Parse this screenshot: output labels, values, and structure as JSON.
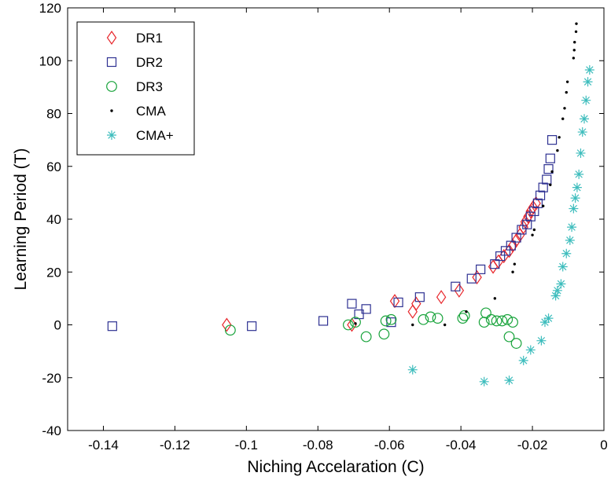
{
  "chart_data": {
    "type": "scatter",
    "title": "",
    "xlabel": "Niching Accelaration (C)",
    "ylabel": "Learning Period (T)",
    "xlim": [
      -0.15,
      0
    ],
    "ylim": [
      -40,
      120
    ],
    "xticks": [
      -0.14,
      -0.12,
      -0.1,
      -0.08,
      -0.06,
      -0.04,
      -0.02,
      0
    ],
    "xtick_labels": [
      "-0.14",
      "-0.12",
      "-0.1",
      "-0.08",
      "-0.06",
      "-0.04",
      "-0.02",
      "0"
    ],
    "yticks": [
      -40,
      -20,
      0,
      20,
      40,
      60,
      80,
      100,
      120
    ],
    "ytick_labels": [
      "-40",
      "-20",
      "0",
      "20",
      "40",
      "60",
      "80",
      "100",
      "120"
    ],
    "grid": false,
    "legend_position": "top-left",
    "series": [
      {
        "name": "DR1",
        "marker": "diamond",
        "color": "#e8262b",
        "points": [
          [
            -0.1055,
            0
          ],
          [
            -0.0705,
            0
          ],
          [
            -0.0585,
            9
          ],
          [
            -0.0535,
            5
          ],
          [
            -0.0525,
            8
          ],
          [
            -0.0455,
            10.5
          ],
          [
            -0.0405,
            13
          ],
          [
            -0.0355,
            18
          ],
          [
            -0.031,
            22
          ],
          [
            -0.0295,
            24
          ],
          [
            -0.028,
            26
          ],
          [
            -0.0265,
            28
          ],
          [
            -0.0255,
            30
          ],
          [
            -0.0245,
            32
          ],
          [
            -0.0235,
            34
          ],
          [
            -0.0225,
            37
          ],
          [
            -0.022,
            39
          ],
          [
            -0.0212,
            41
          ],
          [
            -0.0205,
            43
          ],
          [
            -0.0198,
            44.5
          ],
          [
            -0.019,
            46
          ]
        ]
      },
      {
        "name": "DR2",
        "marker": "square",
        "color": "#2e3192",
        "points": [
          [
            -0.1375,
            -0.5
          ],
          [
            -0.0985,
            -0.5
          ],
          [
            -0.0785,
            1.5
          ],
          [
            -0.0705,
            8
          ],
          [
            -0.0685,
            4
          ],
          [
            -0.0665,
            6
          ],
          [
            -0.0595,
            1
          ],
          [
            -0.0575,
            8.5
          ],
          [
            -0.0515,
            10.5
          ],
          [
            -0.0415,
            14.5
          ],
          [
            -0.037,
            17.5
          ],
          [
            -0.0345,
            21
          ],
          [
            -0.0305,
            23
          ],
          [
            -0.029,
            26
          ],
          [
            -0.0275,
            28
          ],
          [
            -0.026,
            30
          ],
          [
            -0.0245,
            33
          ],
          [
            -0.023,
            36
          ],
          [
            -0.0215,
            38
          ],
          [
            -0.0205,
            41
          ],
          [
            -0.0195,
            43
          ],
          [
            -0.0185,
            46
          ],
          [
            -0.0178,
            49
          ],
          [
            -0.017,
            52
          ],
          [
            -0.016,
            55
          ],
          [
            -0.0155,
            59
          ],
          [
            -0.015,
            63
          ],
          [
            -0.0145,
            70
          ]
        ]
      },
      {
        "name": "DR3",
        "marker": "circle",
        "color": "#17a33a",
        "points": [
          [
            -0.1045,
            -2
          ],
          [
            -0.0715,
            0
          ],
          [
            -0.0695,
            1
          ],
          [
            -0.0665,
            -4.5
          ],
          [
            -0.0615,
            -3.5
          ],
          [
            -0.061,
            1.5
          ],
          [
            -0.0595,
            2
          ],
          [
            -0.0505,
            2
          ],
          [
            -0.0485,
            3
          ],
          [
            -0.0465,
            2.5
          ],
          [
            -0.0395,
            2.5
          ],
          [
            -0.039,
            3.5
          ],
          [
            -0.0335,
            1
          ],
          [
            -0.033,
            4.5
          ],
          [
            -0.0315,
            2
          ],
          [
            -0.03,
            1.5
          ],
          [
            -0.0285,
            1.5
          ],
          [
            -0.027,
            2
          ],
          [
            -0.0255,
            1
          ],
          [
            -0.0265,
            -4.5
          ],
          [
            -0.0245,
            -7
          ]
        ]
      },
      {
        "name": "CMA",
        "marker": "dot",
        "color": "#000000",
        "points": [
          [
            -0.0695,
            0.5
          ],
          [
            -0.0535,
            0
          ],
          [
            -0.0445,
            0
          ],
          [
            -0.0385,
            5
          ],
          [
            -0.0305,
            10
          ],
          [
            -0.0255,
            20
          ],
          [
            -0.025,
            23
          ],
          [
            -0.02,
            34
          ],
          [
            -0.0195,
            36
          ],
          [
            -0.017,
            45
          ],
          [
            -0.015,
            53
          ],
          [
            -0.0145,
            58
          ],
          [
            -0.013,
            66
          ],
          [
            -0.0125,
            71
          ],
          [
            -0.0115,
            78
          ],
          [
            -0.011,
            82
          ],
          [
            -0.0105,
            88
          ],
          [
            -0.0102,
            92
          ],
          [
            -0.0085,
            101
          ],
          [
            -0.0083,
            104
          ],
          [
            -0.0082,
            107
          ],
          [
            -0.0078,
            111
          ],
          [
            -0.0077,
            114
          ]
        ]
      },
      {
        "name": "CMA+",
        "marker": "asterisk",
        "color": "#3ebdbd",
        "points": [
          [
            -0.0535,
            -17
          ],
          [
            -0.0335,
            -21.5
          ],
          [
            -0.0265,
            -21
          ],
          [
            -0.0225,
            -13.5
          ],
          [
            -0.0205,
            -9.5
          ],
          [
            -0.0175,
            -6
          ],
          [
            -0.0165,
            1
          ],
          [
            -0.0155,
            2.5
          ],
          [
            -0.0135,
            11
          ],
          [
            -0.013,
            13
          ],
          [
            -0.012,
            15.5
          ],
          [
            -0.0115,
            22
          ],
          [
            -0.0105,
            27
          ],
          [
            -0.0095,
            32
          ],
          [
            -0.009,
            37
          ],
          [
            -0.0085,
            44
          ],
          [
            -0.008,
            48
          ],
          [
            -0.0075,
            52
          ],
          [
            -0.007,
            57
          ],
          [
            -0.0065,
            65
          ],
          [
            -0.006,
            73
          ],
          [
            -0.0055,
            78
          ],
          [
            -0.005,
            85
          ],
          [
            -0.0045,
            92
          ],
          [
            -0.004,
            96.5
          ]
        ]
      }
    ]
  }
}
